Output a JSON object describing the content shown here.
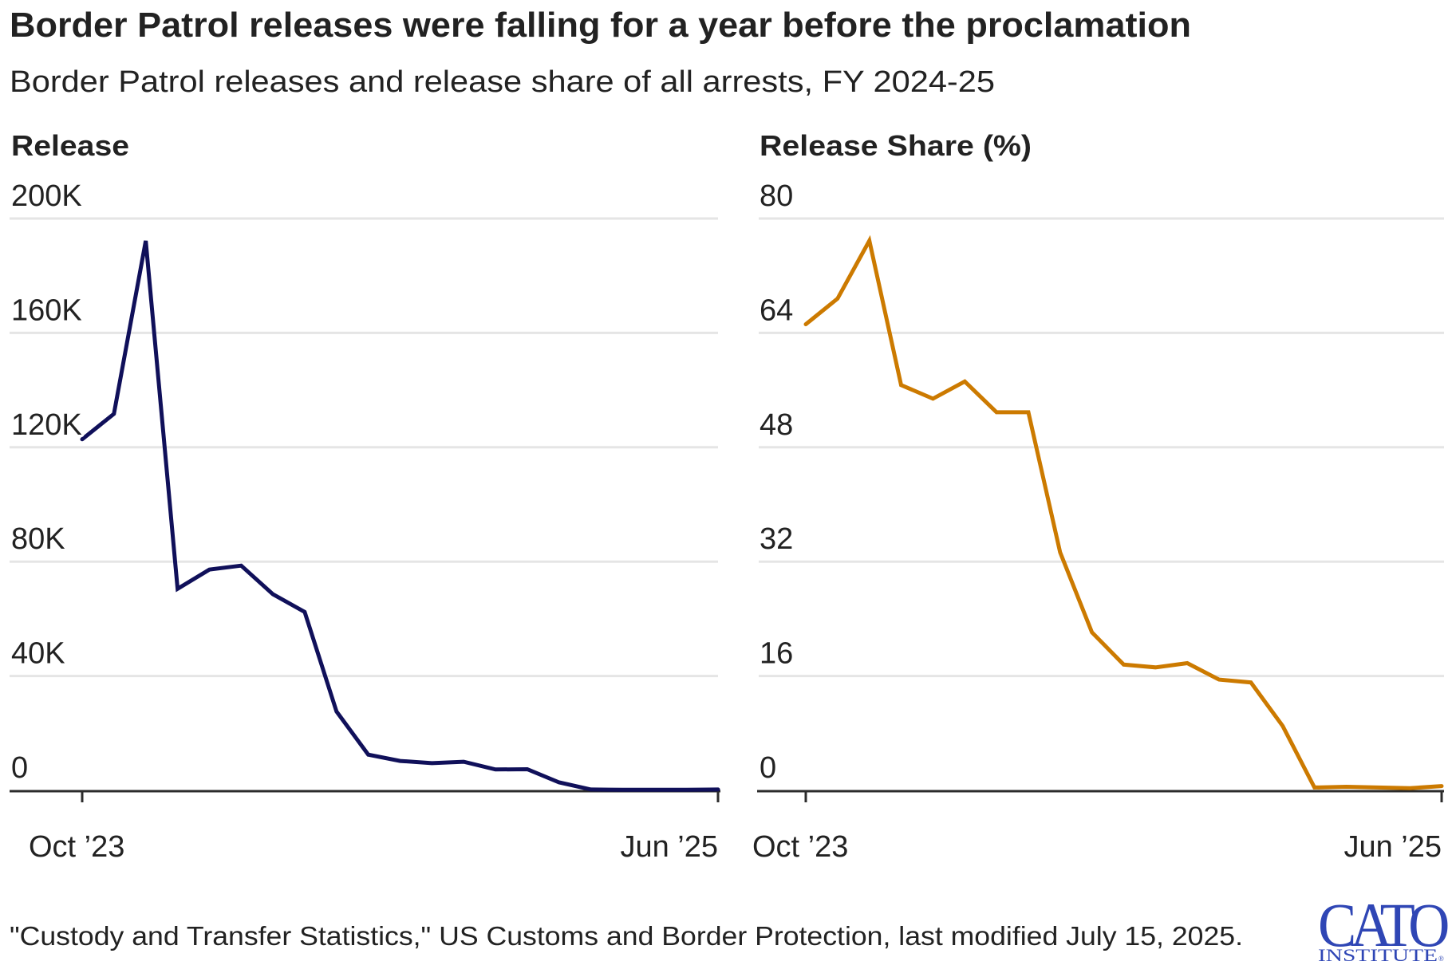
{
  "header": {
    "title": "Border Patrol releases were falling for a year before the proclamation",
    "subtitle": "Border Patrol releases and release share of all arrests, FY 2024-25"
  },
  "footer": {
    "source": "\"Custody and Transfer Statistics,\" US Customs and Border Protection, last modified July 15, 2025.",
    "logo_main": "CATO",
    "logo_sub": "INSTITUTE",
    "logo_mark": "®",
    "logo_color": "#2f46b5"
  },
  "chart_data": [
    {
      "type": "line",
      "title": "Release",
      "xlabel": "",
      "ylabel": "",
      "x_range": [
        "Oct '23",
        "Jun '25"
      ],
      "x": [
        "Oct 2023",
        "Nov 2023",
        "Dec 2023",
        "Jan 2024",
        "Feb 2024",
        "Mar 2024",
        "Apr 2024",
        "May 2024",
        "Jun 2024",
        "Jul 2024",
        "Aug 2024",
        "Sep 2024",
        "Oct 2024",
        "Nov 2024",
        "Dec 2024",
        "Jan 2025",
        "Feb 2025",
        "Mar 2025",
        "Apr 2025",
        "May 2025",
        "Jun 2025"
      ],
      "x_tick_labels": [
        "Oct ’23",
        "Jun ’25"
      ],
      "y_ticks": [
        0,
        40000,
        80000,
        120000,
        160000,
        200000
      ],
      "y_tick_labels": [
        "0",
        "40K",
        "80K",
        "120K",
        "160K",
        "200K"
      ],
      "ylim": [
        0,
        200000
      ],
      "grid": true,
      "series": [
        {
          "name": "Release",
          "color": "#10105a",
          "values": [
            122800,
            131700,
            192200,
            70500,
            77200,
            78600,
            68600,
            62400,
            27600,
            12500,
            10300,
            9500,
            10000,
            7300,
            7400,
            2800,
            300,
            200,
            200,
            200,
            300
          ]
        }
      ]
    },
    {
      "type": "line",
      "title": "Release Share (%)",
      "xlabel": "",
      "ylabel": "",
      "x_range": [
        "Oct '23",
        "Jun '25"
      ],
      "x": [
        "Oct 2023",
        "Nov 2023",
        "Dec 2023",
        "Jan 2024",
        "Feb 2024",
        "Mar 2024",
        "Apr 2024",
        "May 2024",
        "Jun 2024",
        "Jul 2024",
        "Aug 2024",
        "Sep 2024",
        "Oct 2024",
        "Nov 2024",
        "Dec 2024",
        "Jan 2025",
        "Feb 2025",
        "Mar 2025",
        "Apr 2025",
        "May 2025",
        "Jun 2025"
      ],
      "x_tick_labels": [
        "Oct ’23",
        "Jun ’25"
      ],
      "y_ticks": [
        0,
        16,
        32,
        48,
        64,
        80
      ],
      "y_tick_labels": [
        "0",
        "16",
        "32",
        "48",
        "64",
        "80"
      ],
      "ylim": [
        0,
        80
      ],
      "grid": true,
      "series": [
        {
          "name": "Release Share (%)",
          "color": "#cc7a00",
          "values": [
            65.2,
            68.8,
            76.9,
            56.7,
            54.8,
            57.2,
            52.9,
            52.9,
            33.3,
            22.1,
            17.6,
            17.2,
            17.8,
            15.5,
            15.1,
            9.0,
            0.4,
            0.5,
            0.4,
            0.3,
            0.6
          ]
        }
      ]
    }
  ]
}
